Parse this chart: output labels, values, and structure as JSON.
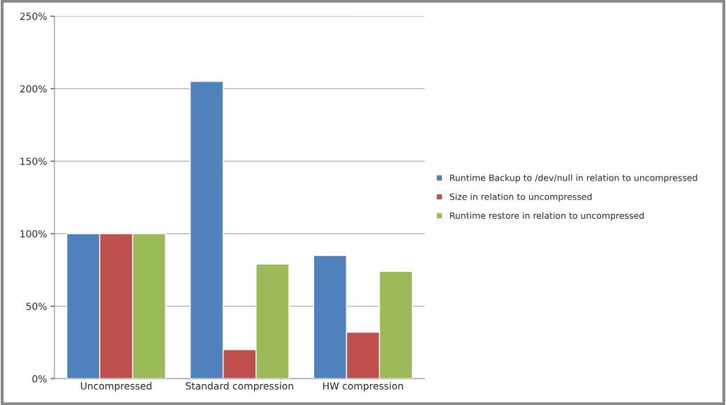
{
  "chart_data": {
    "type": "bar",
    "categories": [
      "Uncompressed",
      "Standard compression",
      "HW compression"
    ],
    "series": [
      {
        "name": "Runtime Backup to /dev/null in relation to uncompressed",
        "color": "#4f81bd",
        "values": [
          100,
          205,
          85
        ]
      },
      {
        "name": "Size in relation to uncompressed",
        "color": "#c0504d",
        "values": [
          100,
          20,
          32
        ]
      },
      {
        "name": "Runtime restore in relation to uncompressed",
        "color": "#9bbb59",
        "values": [
          100,
          79,
          74
        ]
      }
    ],
    "ylim": [
      0,
      250
    ],
    "yticks": [
      {
        "value": 0,
        "label": "0%"
      },
      {
        "value": 50,
        "label": "50%"
      },
      {
        "value": 100,
        "label": "100%"
      },
      {
        "value": 150,
        "label": "150%"
      },
      {
        "value": 200,
        "label": "200%"
      },
      {
        "value": 250,
        "label": "250%"
      }
    ],
    "grid": "y",
    "legend": "right"
  }
}
